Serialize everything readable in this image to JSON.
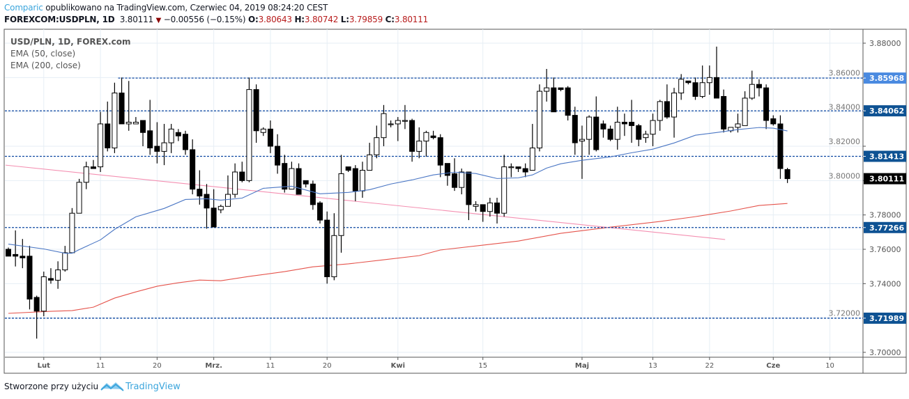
{
  "header": {
    "author": "Comparic",
    "published_text": "opublikowano na TradingView.com, Czerwiec 04, 2019 08:24:20 CEST",
    "symbol": "FOREXCOM:USDPLN, 1D",
    "last": "3.80111",
    "change": "−0.00556 (−0.15%)",
    "o_label": "O:",
    "o": "3.80643",
    "h_label": "H:",
    "h": "3.80742",
    "l_label": "L:",
    "l": "3.79859",
    "c_label": "C:",
    "c": "3.80111"
  },
  "legend": {
    "title": "USD/PLN, 1D, FOREX.com",
    "ema50": "EMA (50, close)",
    "ema200": "EMA (200, close)"
  },
  "footer": {
    "text": "Stworzone przy użyciu",
    "brand": "TradingView"
  },
  "colors": {
    "ema50": "#4a76c4",
    "ema200": "#e5534b",
    "trendline": "#f48fb1",
    "level": "#0d47a1",
    "level_label": "#0e5293",
    "level_label_highlight": "#4a8ae0",
    "grid": "#e6eef5",
    "brand": "#3ba5dc"
  },
  "chart_data": {
    "type": "candlestick",
    "title": "USD/PLN, 1D, FOREX.com",
    "ylim": [
      3.6985,
      3.888
    ],
    "y_ticks": [
      "3.88000",
      "3.86000",
      "3.84000",
      "3.82000",
      "3.80000",
      "3.78000",
      "3.76000",
      "3.74000",
      "3.72000",
      "3.70000"
    ],
    "x_ticks": [
      {
        "bar": 5,
        "label": "Lut",
        "bold": true
      },
      {
        "bar": 13,
        "label": "11"
      },
      {
        "bar": 21,
        "label": "20"
      },
      {
        "bar": 29,
        "label": "Mrz.",
        "bold": true
      },
      {
        "bar": 37,
        "label": "11"
      },
      {
        "bar": 45,
        "label": "20"
      },
      {
        "bar": 55,
        "label": "Kwi",
        "bold": true
      },
      {
        "bar": 67,
        "label": "15"
      },
      {
        "bar": 81,
        "label": "Maj",
        "bold": true
      },
      {
        "bar": 91,
        "label": "13"
      },
      {
        "bar": 99,
        "label": "22"
      },
      {
        "bar": 108,
        "label": "Cze",
        "bold": true
      },
      {
        "bar": 116,
        "label": "10"
      }
    ],
    "bars_visible": 123,
    "ohlc": [
      [
        3.76,
        3.761,
        3.756,
        3.756
      ],
      [
        3.757,
        3.771,
        3.75,
        3.756
      ],
      [
        3.756,
        3.766,
        3.749,
        3.755
      ],
      [
        3.756,
        3.762,
        3.725,
        3.731
      ],
      [
        3.732,
        3.733,
        3.708,
        3.724
      ],
      [
        3.724,
        3.747,
        3.721,
        3.744
      ],
      [
        3.743,
        3.749,
        3.74,
        3.742
      ],
      [
        3.742,
        3.753,
        3.737,
        3.748
      ],
      [
        3.748,
        3.762,
        3.747,
        3.758
      ],
      [
        3.758,
        3.784,
        3.758,
        3.781
      ],
      [
        3.781,
        3.801,
        3.781,
        3.799
      ],
      [
        3.799,
        3.811,
        3.795,
        3.808
      ],
      [
        3.808,
        3.812,
        3.807,
        3.807
      ],
      [
        3.808,
        3.84,
        3.805,
        3.833
      ],
      [
        3.833,
        3.846,
        3.817,
        3.819
      ],
      [
        3.819,
        3.857,
        3.816,
        3.851
      ],
      [
        3.851,
        3.86,
        3.833,
        3.833
      ],
      [
        3.833,
        3.858,
        3.829,
        3.834
      ],
      [
        3.833,
        3.837,
        3.833,
        3.834
      ],
      [
        3.835,
        3.835,
        3.82,
        3.828
      ],
      [
        3.829,
        3.847,
        3.815,
        3.819
      ],
      [
        3.82,
        3.834,
        3.81,
        3.817
      ],
      [
        3.817,
        3.833,
        3.809,
        3.822
      ],
      [
        3.822,
        3.833,
        3.816,
        3.83
      ],
      [
        3.828,
        3.83,
        3.823,
        3.826
      ],
      [
        3.827,
        3.829,
        3.815,
        3.818
      ],
      [
        3.818,
        3.824,
        3.792,
        3.795
      ],
      [
        3.795,
        3.806,
        3.786,
        3.791
      ],
      [
        3.792,
        3.798,
        3.772,
        3.784
      ],
      [
        3.784,
        3.795,
        3.773,
        3.773
      ],
      [
        3.783,
        3.786,
        3.781,
        3.785
      ],
      [
        3.785,
        3.803,
        3.785,
        3.792
      ],
      [
        3.792,
        3.81,
        3.79,
        3.805
      ],
      [
        3.805,
        3.811,
        3.799,
        3.8
      ],
      [
        3.8,
        3.86,
        3.799,
        3.853
      ],
      [
        3.853,
        3.856,
        3.822,
        3.829
      ],
      [
        3.828,
        3.831,
        3.826,
        3.83
      ],
      [
        3.83,
        3.835,
        3.816,
        3.82
      ],
      [
        3.82,
        3.827,
        3.804,
        3.809
      ],
      [
        3.81,
        3.815,
        3.793,
        3.795
      ],
      [
        3.795,
        3.811,
        3.795,
        3.807
      ],
      [
        3.807,
        3.81,
        3.792,
        3.792
      ],
      [
        3.8,
        3.8,
        3.796,
        3.798
      ],
      [
        3.798,
        3.8,
        3.783,
        3.786
      ],
      [
        3.787,
        3.788,
        3.775,
        3.777
      ],
      [
        3.777,
        3.782,
        3.74,
        3.744
      ],
      [
        3.744,
        3.781,
        3.742,
        3.768
      ],
      [
        3.768,
        3.815,
        3.758,
        3.804
      ],
      [
        3.808,
        3.808,
        3.805,
        3.806
      ],
      [
        3.807,
        3.809,
        3.788,
        3.794
      ],
      [
        3.794,
        3.811,
        3.79,
        3.806
      ],
      [
        3.806,
        3.822,
        3.806,
        3.815
      ],
      [
        3.815,
        3.832,
        3.813,
        3.825
      ],
      [
        3.825,
        3.844,
        3.82,
        3.839
      ],
      [
        3.833,
        3.835,
        3.831,
        3.833
      ],
      [
        3.833,
        3.837,
        3.823,
        3.835
      ],
      [
        3.835,
        3.844,
        3.83,
        3.835
      ],
      [
        3.835,
        3.836,
        3.811,
        3.817
      ],
      [
        3.817,
        3.831,
        3.813,
        3.823
      ],
      [
        3.823,
        3.829,
        3.814,
        3.828
      ],
      [
        3.826,
        3.829,
        3.824,
        3.825
      ],
      [
        3.825,
        3.827,
        3.802,
        3.809
      ],
      [
        3.81,
        3.81,
        3.797,
        3.803
      ],
      [
        3.804,
        3.813,
        3.794,
        3.796
      ],
      [
        3.796,
        3.807,
        3.792,
        3.805
      ],
      [
        3.805,
        3.805,
        3.777,
        3.786
      ],
      [
        3.785,
        3.788,
        3.782,
        3.786
      ],
      [
        3.786,
        3.786,
        3.776,
        3.782
      ],
      [
        3.782,
        3.79,
        3.779,
        3.787
      ],
      [
        3.787,
        3.79,
        3.775,
        3.781
      ],
      [
        3.781,
        3.815,
        3.779,
        3.808
      ],
      [
        3.808,
        3.81,
        3.802,
        3.808
      ],
      [
        3.808,
        3.808,
        3.805,
        3.807
      ],
      [
        3.807,
        3.81,
        3.802,
        3.805
      ],
      [
        3.806,
        3.833,
        3.806,
        3.819
      ],
      [
        3.819,
        3.856,
        3.817,
        3.852
      ],
      [
        3.852,
        3.865,
        3.846,
        3.854
      ],
      [
        3.854,
        3.86,
        3.84,
        3.84
      ],
      [
        3.854,
        3.854,
        3.852,
        3.853
      ],
      [
        3.854,
        3.855,
        3.835,
        3.838
      ],
      [
        3.838,
        3.843,
        3.815,
        3.822
      ],
      [
        3.823,
        3.832,
        3.801,
        3.824
      ],
      [
        3.824,
        3.838,
        3.815,
        3.837
      ],
      [
        3.837,
        3.849,
        3.817,
        3.818
      ],
      [
        3.833,
        3.835,
        3.825,
        3.83
      ],
      [
        3.83,
        3.832,
        3.823,
        3.824
      ],
      [
        3.824,
        3.843,
        3.818,
        3.834
      ],
      [
        3.834,
        3.839,
        3.826,
        3.833
      ],
      [
        3.834,
        3.847,
        3.822,
        3.832
      ],
      [
        3.832,
        3.833,
        3.82,
        3.824
      ],
      [
        3.825,
        3.829,
        3.822,
        3.827
      ],
      [
        3.827,
        3.839,
        3.82,
        3.835
      ],
      [
        3.835,
        3.847,
        3.829,
        3.846
      ],
      [
        3.846,
        3.856,
        3.836,
        3.837
      ],
      [
        3.837,
        3.854,
        3.825,
        3.851
      ],
      [
        3.851,
        3.862,
        3.847,
        3.859
      ],
      [
        3.858,
        3.858,
        3.856,
        3.857
      ],
      [
        3.857,
        3.86,
        3.847,
        3.849
      ],
      [
        3.849,
        3.867,
        3.848,
        3.857
      ],
      [
        3.857,
        3.867,
        3.85,
        3.86
      ],
      [
        3.86,
        3.878,
        3.848,
        3.848
      ],
      [
        3.849,
        3.853,
        3.828,
        3.83
      ],
      [
        3.829,
        3.831,
        3.828,
        3.831
      ],
      [
        3.831,
        3.839,
        3.828,
        3.833
      ],
      [
        3.832,
        3.852,
        3.832,
        3.848
      ],
      [
        3.848,
        3.864,
        3.847,
        3.856
      ],
      [
        3.856,
        3.859,
        3.849,
        3.854
      ],
      [
        3.854,
        3.856,
        3.83,
        3.835
      ],
      [
        3.836,
        3.838,
        3.832,
        3.833
      ],
      [
        3.833,
        3.838,
        3.801,
        3.807
      ],
      [
        3.80643,
        3.80742,
        3.79859,
        3.80111
      ]
    ],
    "ema50": [
      [
        0,
        3.763
      ],
      [
        5,
        3.7602
      ],
      [
        8,
        3.7577
      ],
      [
        9,
        3.7577
      ],
      [
        10,
        3.7598
      ],
      [
        13,
        3.7655
      ],
      [
        15,
        3.7716
      ],
      [
        18,
        3.7789
      ],
      [
        22,
        3.7838
      ],
      [
        25,
        3.789
      ],
      [
        28,
        3.7894
      ],
      [
        30,
        3.7886
      ],
      [
        33,
        3.7898
      ],
      [
        36,
        3.7955
      ],
      [
        40,
        3.7967
      ],
      [
        44,
        3.7923
      ],
      [
        48,
        3.7931
      ],
      [
        51,
        3.7947
      ],
      [
        54,
        3.798
      ],
      [
        57,
        3.8004
      ],
      [
        60,
        3.8033
      ],
      [
        63,
        3.8049
      ],
      [
        66,
        3.8041
      ],
      [
        69,
        3.8012
      ],
      [
        72,
        3.8016
      ],
      [
        74,
        3.8033
      ],
      [
        76,
        3.8073
      ],
      [
        78,
        3.8098
      ],
      [
        81,
        3.8118
      ],
      [
        85,
        3.8138
      ],
      [
        88,
        3.8162
      ],
      [
        91,
        3.8183
      ],
      [
        94,
        3.8219
      ],
      [
        97,
        3.8264
      ],
      [
        100,
        3.828
      ],
      [
        103,
        3.8297
      ],
      [
        106,
        3.8309
      ],
      [
        108,
        3.8305
      ],
      [
        110,
        3.8289
      ]
    ],
    "ema200": [
      [
        0,
        3.7227
      ],
      [
        6,
        3.7239
      ],
      [
        9,
        3.7243
      ],
      [
        12,
        3.7263
      ],
      [
        15,
        3.7316
      ],
      [
        18,
        3.7352
      ],
      [
        21,
        3.7385
      ],
      [
        24,
        3.7405
      ],
      [
        27,
        3.7421
      ],
      [
        30,
        3.7417
      ],
      [
        34,
        3.7442
      ],
      [
        39,
        3.747
      ],
      [
        43,
        3.7498
      ],
      [
        48,
        3.7515
      ],
      [
        53,
        3.7539
      ],
      [
        58,
        3.7563
      ],
      [
        61,
        3.7596
      ],
      [
        67,
        3.7624
      ],
      [
        72,
        3.7648
      ],
      [
        78,
        3.7693
      ],
      [
        85,
        3.7729
      ],
      [
        92,
        3.7762
      ],
      [
        97,
        3.779
      ],
      [
        102,
        3.7823
      ],
      [
        106,
        3.7855
      ],
      [
        110,
        3.7867
      ]
    ],
    "trendline": [
      [
        -0.4,
        3.809
      ],
      [
        101.2,
        3.7657
      ]
    ],
    "levels": [
      {
        "price": 3.85968,
        "label": "3.85968",
        "from_bar": 16,
        "highlight": true
      },
      {
        "price": 3.84062,
        "label": "3.84062"
      },
      {
        "price": 3.81413,
        "label": "3.81413"
      },
      {
        "price": 3.77266,
        "label": "3.77266"
      },
      {
        "price": 3.71989,
        "label": "3.71989"
      }
    ],
    "last_price": {
      "price": 3.80111,
      "label": "3.80111"
    }
  }
}
